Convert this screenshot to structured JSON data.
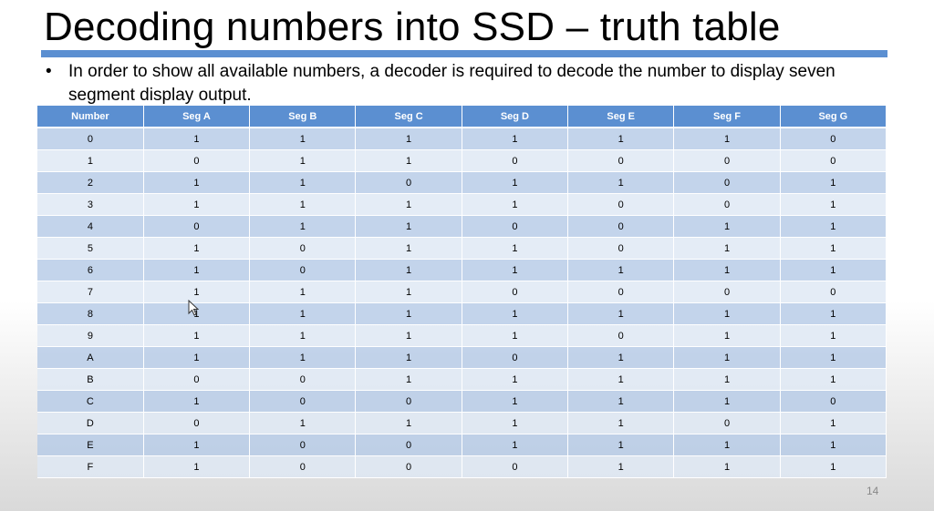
{
  "slide": {
    "title": "Decoding numbers into SSD – truth table",
    "bullet_symbol": "•",
    "bullet": "In order to show all available numbers, a decoder is required to decode the number to display seven segment display output.",
    "page_number": "14",
    "accent_color": "#5b8fd1"
  },
  "table": {
    "headers": [
      "Number",
      "Seg A",
      "Seg B",
      "Seg C",
      "Seg D",
      "Seg E",
      "Seg F",
      "Seg G"
    ],
    "rows": [
      [
        "0",
        "1",
        "1",
        "1",
        "1",
        "1",
        "1",
        "0"
      ],
      [
        "1",
        "0",
        "1",
        "1",
        "0",
        "0",
        "0",
        "0"
      ],
      [
        "2",
        "1",
        "1",
        "0",
        "1",
        "1",
        "0",
        "1"
      ],
      [
        "3",
        "1",
        "1",
        "1",
        "1",
        "0",
        "0",
        "1"
      ],
      [
        "4",
        "0",
        "1",
        "1",
        "0",
        "0",
        "1",
        "1"
      ],
      [
        "5",
        "1",
        "0",
        "1",
        "1",
        "0",
        "1",
        "1"
      ],
      [
        "6",
        "1",
        "0",
        "1",
        "1",
        "1",
        "1",
        "1"
      ],
      [
        "7",
        "1",
        "1",
        "1",
        "0",
        "0",
        "0",
        "0"
      ],
      [
        "8",
        "1",
        "1",
        "1",
        "1",
        "1",
        "1",
        "1"
      ],
      [
        "9",
        "1",
        "1",
        "1",
        "1",
        "0",
        "1",
        "1"
      ],
      [
        "A",
        "1",
        "1",
        "1",
        "0",
        "1",
        "1",
        "1"
      ],
      [
        "B",
        "0",
        "0",
        "1",
        "1",
        "1",
        "1",
        "1"
      ],
      [
        "C",
        "1",
        "0",
        "0",
        "1",
        "1",
        "1",
        "0"
      ],
      [
        "D",
        "0",
        "1",
        "1",
        "1",
        "1",
        "0",
        "1"
      ],
      [
        "E",
        "1",
        "0",
        "0",
        "1",
        "1",
        "1",
        "1"
      ],
      [
        "F",
        "1",
        "0",
        "0",
        "0",
        "1",
        "1",
        "1"
      ]
    ]
  }
}
